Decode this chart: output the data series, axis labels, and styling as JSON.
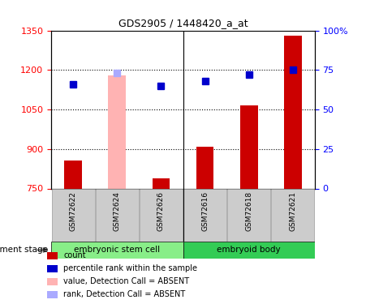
{
  "title": "GDS2905 / 1448420_a_at",
  "samples": [
    "GSM72622",
    "GSM72624",
    "GSM72626",
    "GSM72616",
    "GSM72618",
    "GSM72621"
  ],
  "bar_values": [
    855,
    1180,
    790,
    910,
    1065,
    1330
  ],
  "bar_baseline": 750,
  "bar_absent": [
    false,
    true,
    false,
    false,
    false,
    false
  ],
  "rank_values": [
    66,
    73,
    65,
    68,
    72,
    75
  ],
  "rank_absent": [
    false,
    true,
    false,
    false,
    false,
    false
  ],
  "bar_color_normal": "#cc0000",
  "bar_color_absent": "#ffb3b3",
  "rank_color_normal": "#0000cc",
  "rank_color_absent": "#aaaaff",
  "ylim_left": [
    750,
    1350
  ],
  "ylim_right": [
    0,
    100
  ],
  "yticks_left": [
    750,
    900,
    1050,
    1200,
    1350
  ],
  "yticks_right": [
    0,
    25,
    50,
    75,
    100
  ],
  "yticklabels_right": [
    "0",
    "25",
    "50",
    "75",
    "100%"
  ],
  "groups": [
    {
      "label": "embryonic stem cell",
      "indices": [
        0,
        1,
        2
      ],
      "color": "#88ee88"
    },
    {
      "label": "embryoid body",
      "indices": [
        3,
        4,
        5
      ],
      "color": "#33cc55"
    }
  ],
  "stage_label": "development stage",
  "legend_items": [
    {
      "label": "count",
      "color": "#cc0000"
    },
    {
      "label": "percentile rank within the sample",
      "color": "#0000cc"
    },
    {
      "label": "value, Detection Call = ABSENT",
      "color": "#ffb3b3"
    },
    {
      "label": "rank, Detection Call = ABSENT",
      "color": "#aaaaff"
    }
  ],
  "bar_width": 0.4,
  "rank_marker_size": 6,
  "grid_lines": [
    900,
    1050,
    1200
  ]
}
